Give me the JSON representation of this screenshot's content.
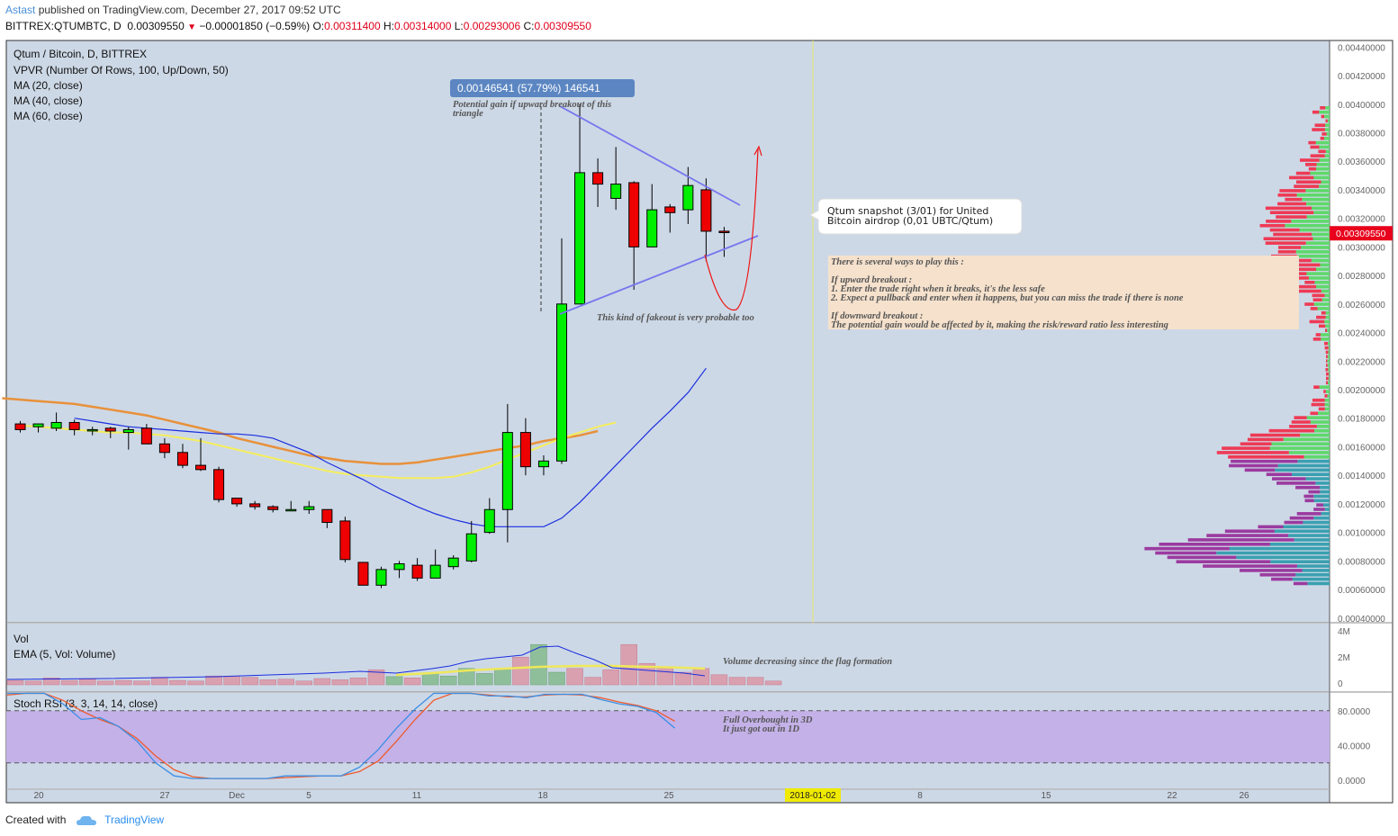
{
  "header": {
    "author": "Astast",
    "published_text": "published on TradingView.com, December 27, 2017 09:52 UTC",
    "symbol": "BITTREX:QTUMBTC, D",
    "last": "0.00309550",
    "change": "−0.00001850 (−0.59%)",
    "o_label": "O:",
    "o": "0.00311400",
    "h_label": "H:",
    "h": "0.00314000",
    "l_label": "L:",
    "l": "0.00293006",
    "c_label": "C:",
    "c": "0.00309550"
  },
  "legend": {
    "title": "Qtum / Bitcoin, D, BITTREX",
    "items": [
      "VPVR (Number Of Rows, 100, Up/Down, 50)",
      "MA (20, close)",
      "MA (40, close)",
      "MA (60, close)"
    ]
  },
  "annotations": {
    "measure_box": "0.00146541 (57.79%) 146541",
    "potential_gain": [
      "Potential gain if upward breakout of this",
      "triangle"
    ],
    "fakeout": "This kind of fakeout is very probable too",
    "snapshot": [
      "Qtum snapshot (3/01) for United",
      "Bitcoin airdrop (0,01 UBTC/Qtum)"
    ],
    "strategy": [
      "There is several ways to play this :",
      "",
      "If upward breakout :",
      "1. Enter the trade right when it breaks, it's the less safe",
      "2. Expect a pullback and enter when it happens, but you can miss the trade if there is none",
      "",
      "If downward breakout :",
      "The potential gain would be affected by it, making the risk/reward ratio less interesting"
    ],
    "volume_note": "Volume decreasing since the flag formation",
    "stoch_note": [
      "Full Overbought in 3D",
      "It just got out in 1D"
    ]
  },
  "volume_pane": {
    "title": "Vol",
    "ema": "EMA (5, Vol: Volume)",
    "ticks": [
      "4M",
      "2M",
      "0"
    ]
  },
  "stoch_pane": {
    "title": "Stoch RSI (3, 3, 14, 14, close)",
    "ticks": [
      "80.0000",
      "40.0000",
      "0.0000"
    ]
  },
  "price_axis": {
    "ticks": [
      "0.00440000",
      "0.00420000",
      "0.00400000",
      "0.00380000",
      "0.00360000",
      "0.00340000",
      "0.00320000",
      "0.00300000",
      "0.00280000",
      "0.00260000",
      "0.00240000",
      "0.00220000",
      "0.00200000",
      "0.00180000",
      "0.00160000",
      "0.00140000",
      "0.00120000",
      "0.00100000",
      "0.00080000",
      "0.00060000",
      "0.00040000"
    ],
    "current_label": "0.00309550"
  },
  "time_axis": {
    "labels": [
      "20",
      "27",
      "Dec",
      "5",
      "11",
      "18",
      "25",
      "8",
      "15",
      "22",
      "26"
    ],
    "highlight": "2018-01-02"
  },
  "colors": {
    "up": "#00ee00",
    "down": "#ee0000",
    "ma20": "#1a2ee0",
    "ma40": "#f5ee5c",
    "ma60": "#e8913a",
    "trendline": "#7777ee",
    "stoch_k": "#3a8ee6",
    "stoch_d": "#ef5a2c",
    "pane_bg": "#cdd8e6"
  },
  "chart_data": {
    "type": "candlestick",
    "ylim": [
      0.0004,
      0.0044
    ],
    "candles": [
      {
        "o": 0.00176,
        "h": 0.00178,
        "l": 0.0017,
        "c": 0.00172
      },
      {
        "o": 0.00174,
        "h": 0.00176,
        "l": 0.0017,
        "c": 0.00176
      },
      {
        "o": 0.00173,
        "h": 0.00184,
        "l": 0.00171,
        "c": 0.00177
      },
      {
        "o": 0.00177,
        "h": 0.00179,
        "l": 0.00168,
        "c": 0.00172
      },
      {
        "o": 0.00172,
        "h": 0.00174,
        "l": 0.00168,
        "c": 0.00172
      },
      {
        "o": 0.00173,
        "h": 0.00174,
        "l": 0.00166,
        "c": 0.00171
      },
      {
        "o": 0.0017,
        "h": 0.00174,
        "l": 0.00158,
        "c": 0.00172
      },
      {
        "o": 0.00173,
        "h": 0.00176,
        "l": 0.00162,
        "c": 0.00162
      },
      {
        "o": 0.00162,
        "h": 0.00166,
        "l": 0.00152,
        "c": 0.00156
      },
      {
        "o": 0.00156,
        "h": 0.00162,
        "l": 0.00145,
        "c": 0.00147
      },
      {
        "o": 0.00147,
        "h": 0.00166,
        "l": 0.00143,
        "c": 0.00144
      },
      {
        "o": 0.00144,
        "h": 0.00146,
        "l": 0.00121,
        "c": 0.00123
      },
      {
        "o": 0.00124,
        "h": 0.00124,
        "l": 0.00118,
        "c": 0.0012
      },
      {
        "o": 0.0012,
        "h": 0.00122,
        "l": 0.00116,
        "c": 0.00118
      },
      {
        "o": 0.00118,
        "h": 0.00119,
        "l": 0.00114,
        "c": 0.00116
      },
      {
        "o": 0.00116,
        "h": 0.00122,
        "l": 0.00115,
        "c": 0.00116
      },
      {
        "o": 0.00116,
        "h": 0.00122,
        "l": 0.00113,
        "c": 0.00118
      },
      {
        "o": 0.00116,
        "h": 0.00116,
        "l": 0.00103,
        "c": 0.00107
      },
      {
        "o": 0.00108,
        "h": 0.00111,
        "l": 0.00079,
        "c": 0.00081
      },
      {
        "o": 0.00079,
        "h": 0.00079,
        "l": 0.00063,
        "c": 0.00063
      },
      {
        "o": 0.00063,
        "h": 0.00076,
        "l": 0.00061,
        "c": 0.00074
      },
      {
        "o": 0.00074,
        "h": 0.0008,
        "l": 0.00068,
        "c": 0.00078
      },
      {
        "o": 0.00077,
        "h": 0.00082,
        "l": 0.00066,
        "c": 0.00068
      },
      {
        "o": 0.00068,
        "h": 0.00088,
        "l": 0.00068,
        "c": 0.00077
      },
      {
        "o": 0.00076,
        "h": 0.00084,
        "l": 0.00074,
        "c": 0.00082
      },
      {
        "o": 0.0008,
        "h": 0.00108,
        "l": 0.00079,
        "c": 0.00099
      },
      {
        "o": 0.001,
        "h": 0.00124,
        "l": 0.00099,
        "c": 0.00116
      },
      {
        "o": 0.00116,
        "h": 0.0019,
        "l": 0.00093,
        "c": 0.0017
      },
      {
        "o": 0.0017,
        "h": 0.0018,
        "l": 0.0014,
        "c": 0.00146
      },
      {
        "o": 0.00146,
        "h": 0.00154,
        "l": 0.0014,
        "c": 0.0015
      },
      {
        "o": 0.0015,
        "h": 0.00306,
        "l": 0.00148,
        "c": 0.0026
      },
      {
        "o": 0.0026,
        "h": 0.004,
        "l": 0.0026,
        "c": 0.00352
      },
      {
        "o": 0.00352,
        "h": 0.00362,
        "l": 0.00328,
        "c": 0.00344
      },
      {
        "o": 0.00334,
        "h": 0.0037,
        "l": 0.00326,
        "c": 0.00344
      },
      {
        "o": 0.00345,
        "h": 0.00346,
        "l": 0.0027,
        "c": 0.003
      },
      {
        "o": 0.003,
        "h": 0.00344,
        "l": 0.003,
        "c": 0.00326
      },
      {
        "o": 0.00328,
        "h": 0.0033,
        "l": 0.0031,
        "c": 0.00324
      },
      {
        "o": 0.00326,
        "h": 0.00356,
        "l": 0.00316,
        "c": 0.00343
      },
      {
        "o": 0.0034,
        "h": 0.00348,
        "l": 0.0029,
        "c": 0.00311
      },
      {
        "o": 0.00311,
        "h": 0.00314,
        "l": 0.00293,
        "c": 0.0031
      }
    ],
    "ma20": [
      0.0018,
      0.00178,
      0.00176,
      0.00174,
      0.00173,
      0.00172,
      0.00171,
      0.0017,
      0.00169,
      0.00169,
      0.00168,
      0.00166,
      0.00161,
      0.00156,
      0.00149,
      0.00143,
      0.00137,
      0.0013,
      0.00124,
      0.00118,
      0.00113,
      0.00109,
      0.00106,
      0.00104,
      0.00104,
      0.00104,
      0.00104,
      0.0011,
      0.00121,
      0.00134,
      0.00147,
      0.0016,
      0.00173,
      0.00185,
      0.00198,
      0.00215
    ],
    "ma40": [
      0.00175,
      0.00174,
      0.00173,
      0.00172,
      0.00171,
      0.0017,
      0.0017,
      0.00169,
      0.00168,
      0.00166,
      0.00164,
      0.00161,
      0.00158,
      0.00155,
      0.00152,
      0.00149,
      0.00146,
      0.00143,
      0.00141,
      0.0014,
      0.00139,
      0.00138,
      0.00138,
      0.00138,
      0.00139,
      0.00142,
      0.00146,
      0.00151,
      0.00156,
      0.00161,
      0.00166,
      0.0017,
      0.00174,
      0.00177
    ],
    "ma60": [
      0.00194,
      0.00193,
      0.00192,
      0.00191,
      0.0019,
      0.00188,
      0.00186,
      0.00184,
      0.00182,
      0.00179,
      0.00176,
      0.00173,
      0.0017,
      0.00166,
      0.00163,
      0.0016,
      0.00157,
      0.00154,
      0.00152,
      0.0015,
      0.00149,
      0.00148,
      0.00148,
      0.00149,
      0.00151,
      0.00153,
      0.00155,
      0.00157,
      0.00159,
      0.00161,
      0.00164,
      0.00166,
      0.00168,
      0.00171
    ],
    "volume": [
      0.35,
      0.3,
      0.55,
      0.35,
      0.45,
      0.3,
      0.35,
      0.3,
      0.6,
      0.35,
      0.3,
      0.7,
      0.7,
      0.6,
      0.4,
      0.45,
      0.3,
      0.5,
      0.4,
      0.55,
      1.2,
      0.65,
      0.55,
      0.9,
      0.7,
      1.3,
      0.9,
      1.3,
      2.2,
      3.2,
      1.0,
      1.3,
      0.6,
      1.2,
      3.2,
      1.7,
      1.4,
      1.0,
      1.3,
      0.8,
      0.6,
      0.6,
      0.3
    ],
    "stoch_k": [
      100,
      100,
      100,
      88,
      70,
      72,
      62,
      45,
      20,
      5,
      2,
      2,
      2,
      2,
      2,
      5,
      5,
      5,
      5,
      15,
      35,
      60,
      82,
      100,
      100,
      100,
      97,
      97,
      95,
      99,
      99,
      99,
      93,
      88,
      85,
      78,
      60
    ],
    "stoch_d": [
      98,
      100,
      100,
      92,
      80,
      70,
      62,
      48,
      28,
      12,
      4,
      2,
      2,
      2,
      2,
      3,
      4,
      5,
      5,
      10,
      22,
      45,
      70,
      92,
      100,
      100,
      98,
      96,
      96,
      98,
      99,
      98,
      95,
      90,
      86,
      80,
      68
    ]
  }
}
